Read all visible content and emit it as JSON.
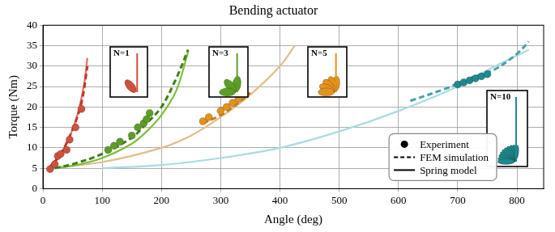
{
  "chart_data": {
    "type": "line",
    "title": "Bending actuator",
    "x_label": "Angle (deg)",
    "y_label": "Torque (Nm)",
    "xlim": [
      0,
      845
    ],
    "xticks": [
      0,
      100,
      200,
      300,
      400,
      500,
      600,
      700,
      800
    ],
    "ylim": [
      0,
      40
    ],
    "yticks": [
      0,
      5,
      10,
      15,
      20,
      25,
      30,
      35,
      40
    ],
    "grid": true,
    "legend": "lower right",
    "annotations": [
      "N=1",
      "N=3",
      "N=5",
      "N=10"
    ],
    "series": [
      {
        "name": "Experiment",
        "type": "scatter",
        "marker": "circle",
        "color": "#d0503e",
        "x": [
          12,
          20,
          25,
          30,
          40,
          45,
          55,
          65
        ],
        "values": [
          4.8,
          6,
          8,
          8.5,
          9.5,
          12,
          15,
          19.5
        ]
      },
      {
        "name": "FEM simulation",
        "type": "line",
        "line_style": "dashed",
        "color": "#c0392b",
        "x": [
          10,
          30,
          50,
          65,
          75
        ],
        "values": [
          5,
          8.5,
          14.5,
          21,
          30
        ]
      },
      {
        "name": "Spring model",
        "type": "line",
        "line_style": "solid",
        "color": "#e8705e",
        "x": [
          10,
          20,
          30,
          40,
          50,
          60,
          70,
          75
        ],
        "values": [
          5,
          6.5,
          8.5,
          11,
          14.5,
          19,
          26,
          32
        ]
      },
      {
        "name": "Experiment",
        "type": "scatter",
        "marker": "circle",
        "color": "#5c9e25",
        "x": [
          110,
          120,
          130,
          150,
          160,
          170,
          175,
          180
        ],
        "values": [
          9.5,
          10.5,
          11.5,
          13,
          15,
          16,
          17,
          18.5
        ]
      },
      {
        "name": "FEM simulation",
        "type": "line",
        "line_style": "dashed",
        "color": "#3f7f1a",
        "x": [
          20,
          50,
          100,
          150,
          175,
          200,
          225,
          245
        ],
        "values": [
          5,
          6,
          8.5,
          12.5,
          16,
          20,
          27,
          34
        ]
      },
      {
        "name": "Spring model",
        "type": "line",
        "line_style": "solid",
        "color": "#7cbf3a",
        "x": [
          10,
          50,
          100,
          150,
          175,
          200,
          225,
          245
        ],
        "values": [
          5,
          5.6,
          7.5,
          11,
          14,
          18,
          24,
          33.5
        ]
      },
      {
        "name": "Experiment",
        "type": "scatter",
        "marker": "circle",
        "color": "#e3921e",
        "x": [
          270,
          280,
          300,
          310,
          320,
          330
        ],
        "values": [
          16.5,
          17.5,
          19,
          20,
          21,
          22
        ]
      },
      {
        "name": "FEM simulation",
        "type": "line",
        "line_style": "dashed",
        "color": "#c98322",
        "x": [
          270,
          300,
          330,
          350
        ],
        "values": [
          16,
          18,
          21,
          23.5
        ]
      },
      {
        "name": "Spring model",
        "type": "line",
        "line_style": "solid",
        "color": "#e2bd8a",
        "x": [
          10,
          100,
          200,
          250,
          300,
          350,
          400,
          425
        ],
        "values": [
          5,
          6.5,
          10,
          13,
          17.5,
          23,
          30,
          35
        ]
      },
      {
        "name": "Experiment",
        "type": "scatter",
        "marker": "circle",
        "color": "#1f8a8e",
        "x": [
          700,
          710,
          720,
          730,
          740,
          750
        ],
        "values": [
          25.5,
          26,
          26.5,
          27,
          27.5,
          28
        ]
      },
      {
        "name": "FEM simulation",
        "type": "line",
        "line_style": "dashed",
        "color": "#4a9fa8",
        "x": [
          620,
          680,
          720,
          760,
          800,
          820
        ],
        "values": [
          21.5,
          24.5,
          27,
          29,
          33,
          36
        ]
      },
      {
        "name": "Spring model",
        "type": "line",
        "line_style": "solid",
        "color": "#a8dce5",
        "x": [
          100,
          200,
          300,
          400,
          500,
          600,
          700,
          750,
          820
        ],
        "values": [
          5,
          5.8,
          7.5,
          10,
          14,
          19,
          25,
          29,
          34
        ]
      }
    ]
  }
}
